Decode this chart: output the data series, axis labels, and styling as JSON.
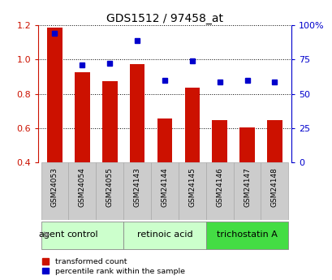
{
  "title": "GDS1512 / 97458_at",
  "samples": [
    "GSM24053",
    "GSM24054",
    "GSM24055",
    "GSM24143",
    "GSM24144",
    "GSM24145",
    "GSM24146",
    "GSM24147",
    "GSM24148"
  ],
  "transformed_count": [
    1.185,
    0.925,
    0.875,
    0.975,
    0.655,
    0.835,
    0.645,
    0.605,
    0.645
  ],
  "percentile_rank": [
    0.94,
    0.71,
    0.72,
    0.89,
    0.6,
    0.74,
    0.585,
    0.6,
    0.585
  ],
  "ymin": 0.4,
  "ymax": 1.2,
  "yticks_left": [
    0.4,
    0.6,
    0.8,
    1.0,
    1.2
  ],
  "right_ytick_pct": [
    0,
    25,
    50,
    75,
    100
  ],
  "right_ylabels": [
    "0",
    "25",
    "50",
    "75",
    "100%"
  ],
  "groups": [
    {
      "label": "control",
      "indices": [
        0,
        1,
        2
      ],
      "color": "#ccffcc"
    },
    {
      "label": "retinoic acid",
      "indices": [
        3,
        4,
        5
      ],
      "color": "#ccffcc"
    },
    {
      "label": "trichostatin A",
      "indices": [
        6,
        7,
        8
      ],
      "color": "#44dd44"
    }
  ],
  "bar_color": "#cc1100",
  "marker_color": "#0000cc",
  "bar_width": 0.55,
  "sample_box_color": "#cccccc",
  "sample_box_edge": "#aaaaaa",
  "background_color": "#ffffff",
  "agent_label": "agent",
  "legend_items": [
    {
      "label": "transformed count",
      "color": "#cc1100"
    },
    {
      "label": "percentile rank within the sample",
      "color": "#0000cc"
    }
  ]
}
